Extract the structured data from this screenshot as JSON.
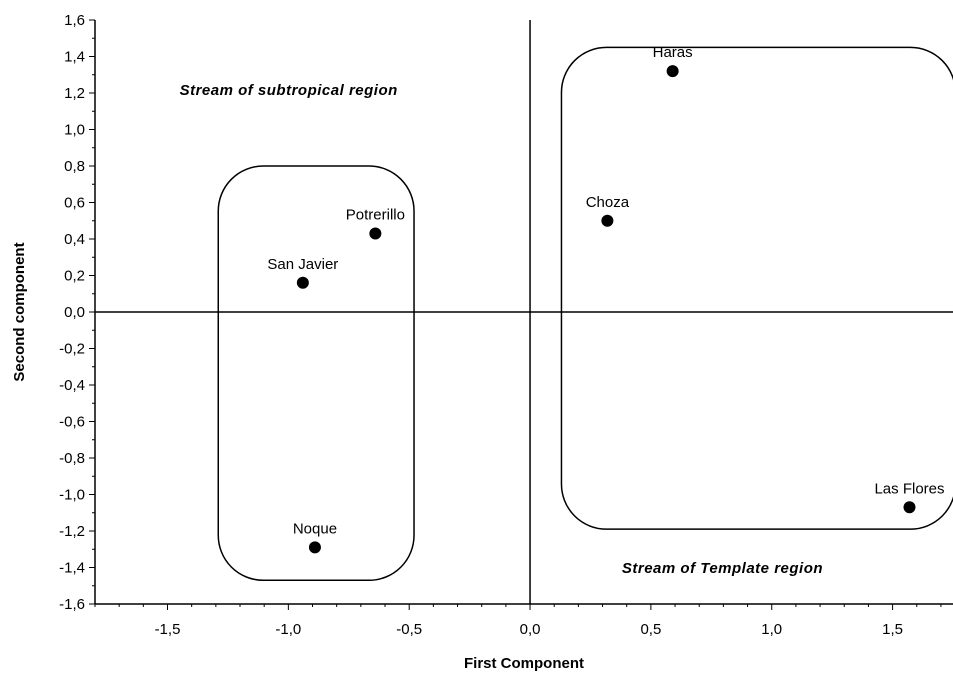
{
  "chart_data": {
    "type": "scatter",
    "xlabel": "First Component",
    "ylabel": "Second component",
    "xlim": [
      -1.8,
      1.75
    ],
    "ylim": [
      -1.6,
      1.6
    ],
    "xticks": [
      -1.5,
      -1.0,
      -0.5,
      0.0,
      0.5,
      1.0,
      1.5
    ],
    "xtick_labels": [
      "-1,5",
      "-1,0",
      "-0,5",
      "0,0",
      "0,5",
      "1,0",
      "1,5"
    ],
    "yticks": [
      1.6,
      1.4,
      1.2,
      1.0,
      0.8,
      0.6,
      0.4,
      0.2,
      0.0,
      -0.2,
      -0.4,
      -0.6,
      -0.8,
      -1.0,
      -1.2,
      -1.4,
      -1.6
    ],
    "ytick_labels": [
      "1,6",
      "1,4",
      "1,2",
      "1,0",
      "0,8",
      "0,6",
      "0,4",
      "0,2",
      "0,0",
      "-0,2",
      "-0,4",
      "-0,6",
      "-0,8",
      "-1,0",
      "-1,2",
      "-1,4",
      "-1,6"
    ],
    "grid": false,
    "points": [
      {
        "label": "Haras",
        "x": 0.59,
        "y": 1.32
      },
      {
        "label": "Choza",
        "x": 0.32,
        "y": 0.5
      },
      {
        "label": "Potrerillo",
        "x": -0.64,
        "y": 0.43
      },
      {
        "label": "San Javier",
        "x": -0.94,
        "y": 0.16
      },
      {
        "label": "Noque",
        "x": -0.89,
        "y": -1.29
      },
      {
        "label": "Las Flores",
        "x": 1.57,
        "y": -1.07
      }
    ],
    "regions": [
      {
        "label": "Stream of subtropical region",
        "x_range": [
          -1.29,
          -0.48
        ],
        "y_range": [
          -1.47,
          0.8
        ]
      },
      {
        "label": "Stream of Template region",
        "x_range": [
          0.13,
          1.76
        ],
        "y_range": [
          -1.19,
          1.45
        ]
      }
    ],
    "region_text": [
      {
        "text": "Stream of subtropical region",
        "x": -1.45,
        "y": 1.19
      },
      {
        "text": "Stream of Template region",
        "x": 0.38,
        "y": -1.43
      }
    ],
    "reference_lines": {
      "x": 0.0,
      "y": 0.0
    },
    "colors": {
      "marker": "#000000",
      "axes": "#000000",
      "background": "#ffffff"
    }
  }
}
